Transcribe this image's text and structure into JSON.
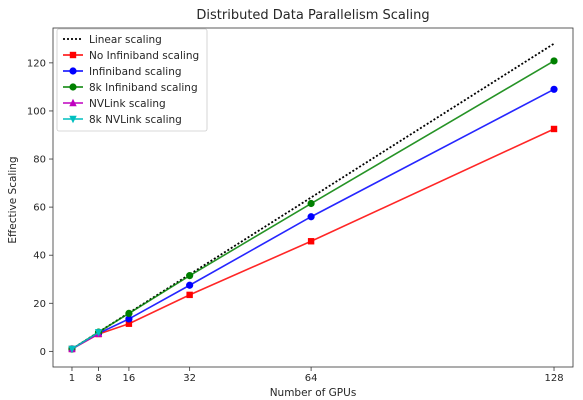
{
  "chart_data": {
    "type": "line",
    "title": "Distributed Data Parallelism Scaling",
    "xlabel": "Number of GPUs",
    "ylabel": "Effective Scaling",
    "xlim": [
      -4,
      133
    ],
    "ylim": [
      -6.5,
      134.5
    ],
    "xticks": [
      1,
      8,
      16,
      32,
      64,
      128
    ],
    "yticks": [
      0,
      20,
      40,
      60,
      80,
      100,
      120
    ],
    "grid": false,
    "legend": "top-left",
    "series": [
      {
        "name": "Linear scaling",
        "style": "dotted",
        "marker": "none",
        "color": "#000000",
        "x": [
          1,
          128
        ],
        "y": [
          1,
          128
        ]
      },
      {
        "name": "No Infiniband scaling",
        "style": "solid",
        "marker": "square",
        "color": "#ff0000",
        "x": [
          1,
          8,
          16,
          32,
          64,
          128
        ],
        "y": [
          1,
          7.2,
          11.5,
          23.5,
          45.8,
          92.5
        ]
      },
      {
        "name": "Infiniband scaling",
        "style": "solid",
        "marker": "circle",
        "color": "#0000ff",
        "x": [
          1,
          8,
          16,
          32,
          64,
          128
        ],
        "y": [
          1,
          7.5,
          13.5,
          27.5,
          56,
          109
        ]
      },
      {
        "name": "8k Infiniband scaling",
        "style": "solid",
        "marker": "circle",
        "color": "#008000",
        "x": [
          1,
          8,
          16,
          32,
          64,
          128
        ],
        "y": [
          1,
          8,
          15.8,
          31.5,
          61.5,
          120.8
        ]
      },
      {
        "name": "NVLink scaling",
        "style": "solid",
        "marker": "triangle-up",
        "color": "#bf00bf",
        "x": [
          1,
          8
        ],
        "y": [
          1,
          7.3
        ]
      },
      {
        "name": "8k NVLink scaling",
        "style": "solid",
        "marker": "triangle-down",
        "color": "#00bfbf",
        "x": [
          1,
          8
        ],
        "y": [
          1,
          7.9
        ]
      }
    ]
  }
}
